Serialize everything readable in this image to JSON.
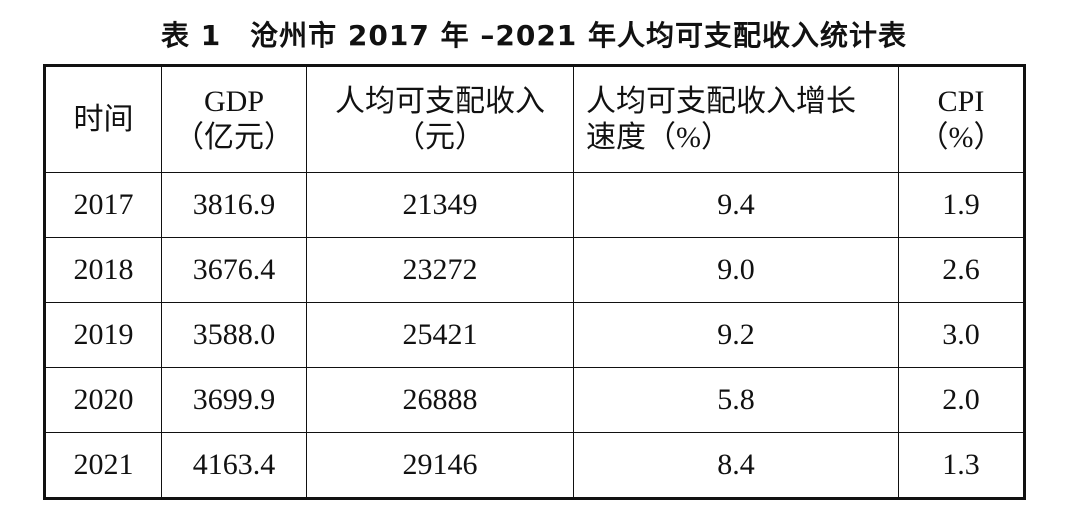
{
  "title": "表 1　沧州市 2017 年 –2021 年人均可支配收入统计表",
  "table": {
    "header": [
      [
        "时间"
      ],
      [
        "GDP",
        "（亿元）"
      ],
      [
        "人均可支配收入",
        "（元）"
      ],
      [
        "人均可支配收入增长",
        "速度（%）"
      ],
      [
        "CPI",
        "（%）"
      ]
    ],
    "rows": [
      [
        "2017",
        "3816.9",
        "21349",
        "9.4",
        "1.9"
      ],
      [
        "2018",
        "3676.4",
        "23272",
        "9.0",
        "2.6"
      ],
      [
        "2019",
        "3588.0",
        "25421",
        "9.2",
        "3.0"
      ],
      [
        "2020",
        "3699.9",
        "26888",
        "5.8",
        "2.0"
      ],
      [
        "2021",
        "4163.4",
        "29146",
        "8.4",
        "1.3"
      ]
    ]
  }
}
